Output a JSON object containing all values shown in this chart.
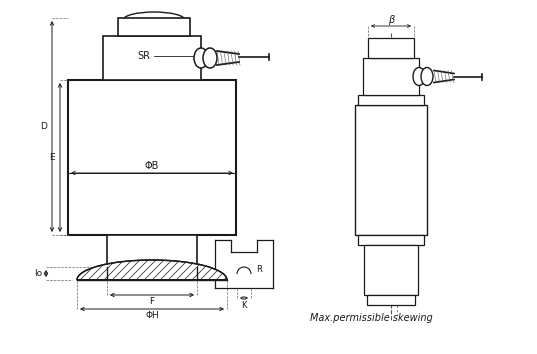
{
  "bg_color": "#ffffff",
  "line_color": "#1a1a1a",
  "label_SR": "SR",
  "label_D": "D",
  "label_E": "E",
  "label_phiB": "ΦB",
  "label_lo": "lo",
  "label_F": "F",
  "label_phiH": "ΦH",
  "label_R": "R",
  "label_K": "K",
  "label_beta": "β",
  "label_max": "Max.permissible skewing"
}
